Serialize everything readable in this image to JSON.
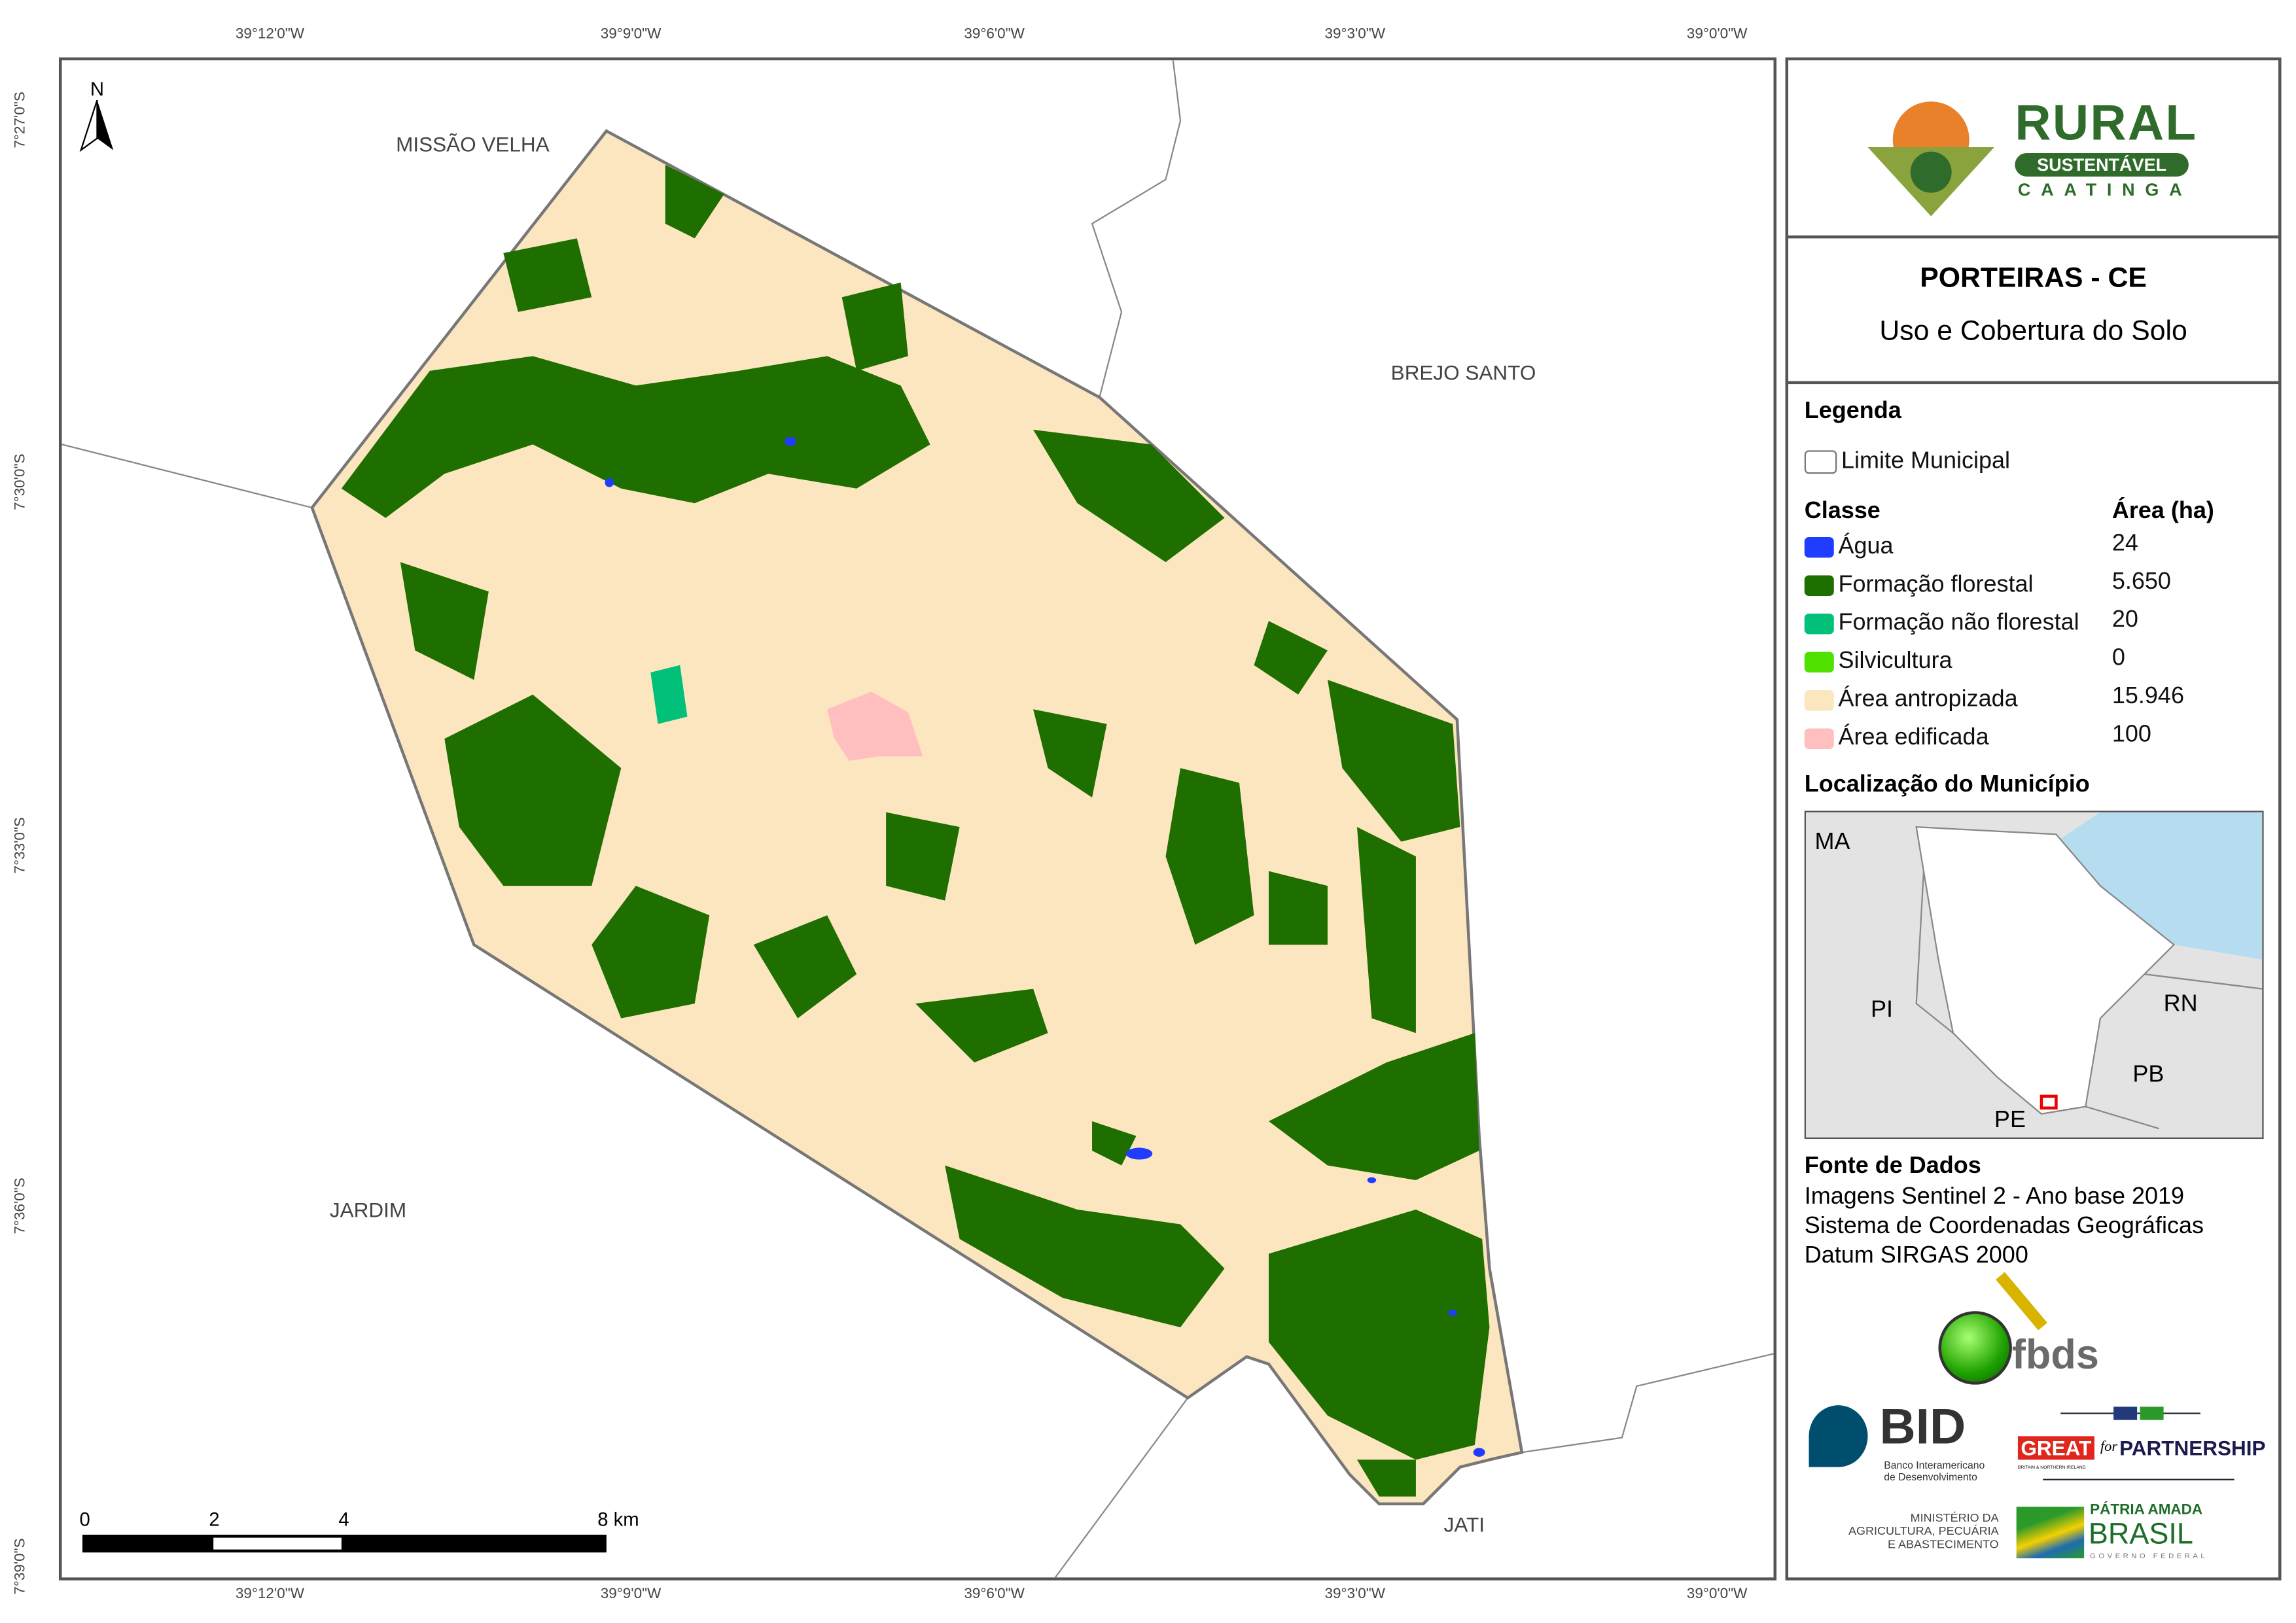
{
  "coordinates": {
    "longitude_ticks": [
      "39°12'0\"W",
      "39°9'0\"W",
      "39°6'0\"W",
      "39°3'0\"W",
      "39°0'0\"W"
    ],
    "latitude_ticks": [
      "7°27'0\"S",
      "7°30'0\"S",
      "7°33'0\"S",
      "7°36'0\"S",
      "7°39'0\"S"
    ]
  },
  "map": {
    "north_label": "N",
    "neighbors": [
      "MISSÃO VELHA",
      "BREJO SANTO",
      "JARDIM",
      "JATI"
    ],
    "scale_bar": {
      "labels": [
        "0",
        "2",
        "4",
        "8 km"
      ]
    },
    "colors": {
      "agua": "#1f3cff",
      "florestal": "#1e6e00",
      "nao_florestal": "#00c07a",
      "silvicultura": "#4fe000",
      "antropizada": "#fce6c0",
      "edificada": "#ffbfbf",
      "limite": "#777777"
    }
  },
  "header": {
    "logo_text": {
      "rural": "RURAL",
      "sustentavel": "SUSTENTÁVEL",
      "caatinga": "CAATINGA"
    },
    "title": "PORTEIRAS - CE",
    "subtitle": "Uso e Cobertura do Solo"
  },
  "legend": {
    "title": "Legenda",
    "boundary_label": "Limite Municipal",
    "class_header": "Classe",
    "area_header": "Área (ha)",
    "classes": [
      {
        "label": "Água",
        "area": "24",
        "color": "#1f3cff"
      },
      {
        "label": "Formação florestal",
        "area": "5.650",
        "color": "#1e6e00"
      },
      {
        "label": "Formação não florestal",
        "area": "20",
        "color": "#00c07a"
      },
      {
        "label": "Silvicultura",
        "area": "0",
        "color": "#4fe000"
      },
      {
        "label": "Área antropizada",
        "area": "15.946",
        "color": "#fce6c0"
      },
      {
        "label": "Área edificada",
        "area": "100",
        "color": "#ffbfbf"
      }
    ]
  },
  "location": {
    "title": "Localização do Município",
    "states": [
      "MA",
      "PI",
      "RN",
      "PB",
      "PE"
    ]
  },
  "source": {
    "title": "Fonte de Dados",
    "lines": [
      "Imagens Sentinel 2 - Ano base 2019",
      "Sistema de Coordenadas Geográficas",
      "Datum SIRGAS 2000"
    ]
  },
  "logos": {
    "fbds": "fbds",
    "bid": "BID",
    "bid_sub": [
      "Banco Interamericano",
      "de Desenvolvimento"
    ],
    "great": "GREAT",
    "great_sub": "BRITAIN & NORTHERN IRELAND",
    "for": "for",
    "partnership": "PARTNERSHIP",
    "ministerio": [
      "MINISTÉRIO DA",
      "AGRICULTURA, PECUÁRIA",
      "E ABASTECIMENTO"
    ],
    "patria": "PÁTRIA AMADA",
    "brasil": "BRASIL",
    "governo": "GOVERNO FEDERAL"
  }
}
